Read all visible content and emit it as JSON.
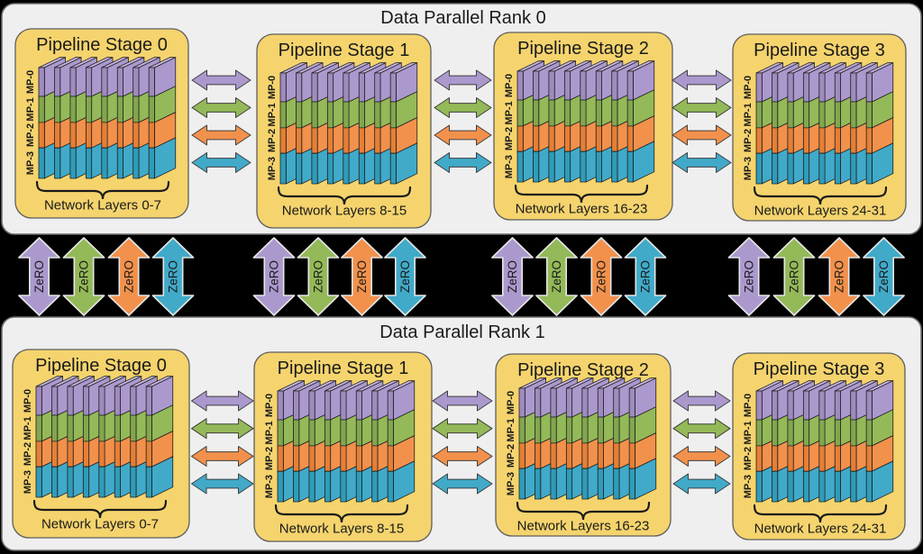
{
  "background": "#000000",
  "rank_panel": {
    "fill": "#efefef",
    "border": "#6e6e6e"
  },
  "stage_box": {
    "fill": "#f5d46e",
    "border": "#5e5e5e"
  },
  "shape_outline": "#1f1f1f",
  "zero_arrow_outline": "#e6e6e6",
  "mp_ranks": [
    {
      "label": "MP-0",
      "front": "#9f8bc0",
      "side": "#ab99ce",
      "top": "#c2b3dc"
    },
    {
      "label": "MP-1",
      "front": "#82a74d",
      "side": "#94b958",
      "top": "#a9ca6b"
    },
    {
      "label": "MP-2",
      "front": "#e67f35",
      "side": "#f2914c",
      "top": "#f6a566"
    },
    {
      "label": "MP-3",
      "front": "#2f9cba",
      "side": "#41aac9",
      "top": "#66bdd6"
    }
  ],
  "zero_label": "ZeRO",
  "slabs_per_stage": 8,
  "ranks": [
    {
      "title": "Data Parallel Rank 0",
      "stages": [
        {
          "title": "Pipeline Stage 0",
          "layers": "Network Layers 0-7"
        },
        {
          "title": "Pipeline Stage 1",
          "layers": "Network Layers 8-15"
        },
        {
          "title": "Pipeline Stage 2",
          "layers": "Network Layers 16-23"
        },
        {
          "title": "Pipeline Stage 3",
          "layers": "Network Layers 24-31"
        }
      ]
    },
    {
      "title": "Data Parallel Rank 1",
      "stages": [
        {
          "title": "Pipeline Stage 0",
          "layers": "Network Layers 0-7"
        },
        {
          "title": "Pipeline Stage 1",
          "layers": "Network Layers 8-15"
        },
        {
          "title": "Pipeline Stage 2",
          "layers": "Network Layers 16-23"
        },
        {
          "title": "Pipeline Stage 3",
          "layers": "Network Layers 24-31"
        }
      ]
    }
  ]
}
